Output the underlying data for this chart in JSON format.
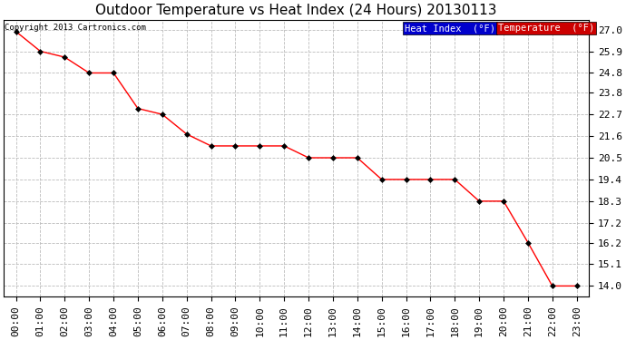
{
  "title": "Outdoor Temperature vs Heat Index (24 Hours) 20130113",
  "copyright": "Copyright 2013 Cartronics.com",
  "background_color": "#ffffff",
  "plot_bg_color": "#ffffff",
  "grid_color": "#bbbbbb",
  "x_labels": [
    "00:00",
    "01:00",
    "02:00",
    "03:00",
    "04:00",
    "05:00",
    "06:00",
    "07:00",
    "08:00",
    "09:00",
    "10:00",
    "11:00",
    "12:00",
    "13:00",
    "14:00",
    "15:00",
    "16:00",
    "17:00",
    "18:00",
    "19:00",
    "20:00",
    "21:00",
    "22:00",
    "23:00"
  ],
  "y_ticks": [
    14.0,
    15.1,
    16.2,
    17.2,
    18.3,
    19.4,
    20.5,
    21.6,
    22.7,
    23.8,
    24.8,
    25.9,
    27.0
  ],
  "ylim": [
    13.45,
    27.5
  ],
  "temp_values": [
    26.9,
    25.9,
    25.6,
    24.8,
    24.8,
    23.0,
    22.7,
    21.7,
    21.1,
    21.1,
    21.1,
    21.1,
    20.5,
    20.5,
    20.5,
    19.4,
    19.4,
    19.4,
    19.4,
    18.3,
    18.3,
    16.2,
    14.0,
    14.0
  ],
  "temp_color": "#ff0000",
  "heat_index_color": "#0000cc",
  "legend_heat_bg": "#0000cc",
  "legend_temp_bg": "#cc0000",
  "title_fontsize": 11,
  "tick_fontsize": 8,
  "marker_size": 3
}
